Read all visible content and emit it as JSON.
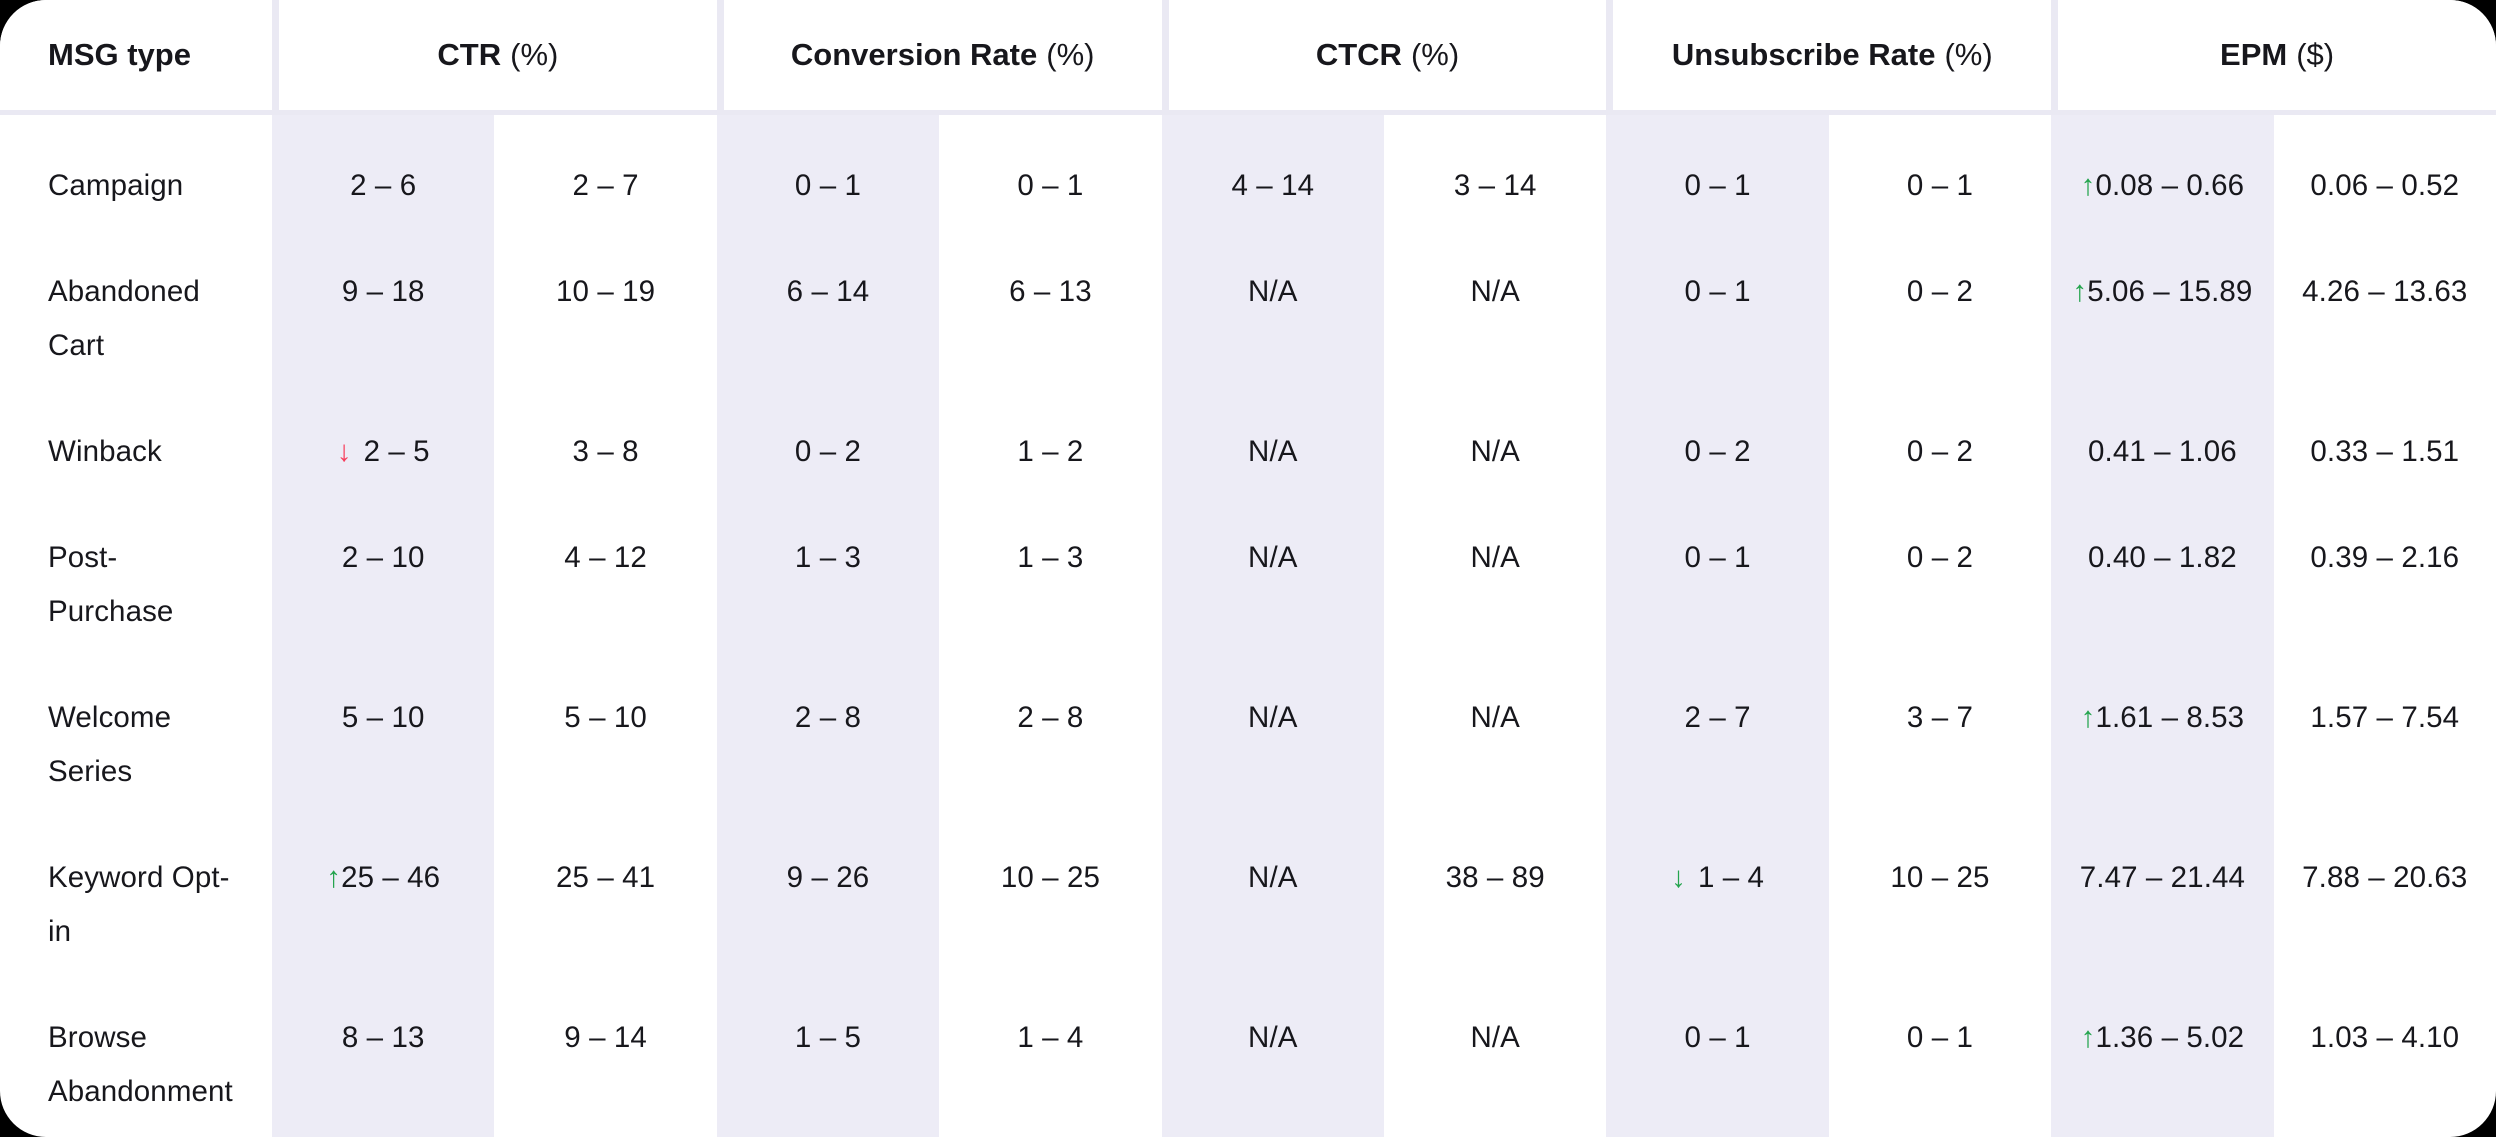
{
  "colors": {
    "page_background": "#000000",
    "card_background": "#ffffff",
    "column_band": "#edecf6",
    "header_gap": "#eae9f3",
    "text": "#17171c",
    "arrow_green": "#24a44e",
    "arrow_red": "#f63e5c"
  },
  "chart_data": {
    "type": "table",
    "row_header_label": "MSG type",
    "column_groups": [
      {
        "label": "CTR",
        "unit": "(%)"
      },
      {
        "label": "Conversion Rate",
        "unit": "(%)"
      },
      {
        "label": "CTCR",
        "unit": "(%)"
      },
      {
        "label": "Unsubscribe Rate",
        "unit": "(%)"
      },
      {
        "label": "EPM",
        "unit": "($)"
      }
    ],
    "subcolumns_per_group": 2,
    "rows": [
      {
        "label": "Campaign",
        "cells": [
          "2 – 6",
          "2 – 7",
          "0 – 1",
          "0 – 1",
          "4 – 14",
          "3 – 14",
          "0 – 1",
          "0 – 1",
          {
            "arrow": "up",
            "color": "green",
            "text": "0.08 – 0.66",
            "space_after_arrow": false
          },
          "0.06 – 0.52"
        ]
      },
      {
        "label": "Abandoned Cart",
        "cells": [
          "9 – 18",
          "10 – 19",
          "6 – 14",
          "6 – 13",
          "N/A",
          "N/A",
          "0 – 1",
          "0 – 2",
          {
            "arrow": "up",
            "color": "green",
            "text": "5.06 – 15.89",
            "space_after_arrow": false
          },
          "4.26 – 13.63"
        ]
      },
      {
        "label": "Winback",
        "cells": [
          {
            "arrow": "down",
            "color": "red",
            "text": "2 – 5",
            "space_after_arrow": true
          },
          "3 – 8",
          "0 – 2",
          "1 – 2",
          "N/A",
          "N/A",
          "0 – 2",
          "0 – 2",
          "0.41 – 1.06",
          "0.33 – 1.51"
        ]
      },
      {
        "label": "Post-Purchase",
        "cells": [
          "2 – 10",
          "4 – 12",
          "1 – 3",
          "1 – 3",
          "N/A",
          "N/A",
          "0 – 1",
          "0 – 2",
          "0.40 – 1.82",
          "0.39 – 2.16"
        ]
      },
      {
        "label": "Welcome Series",
        "cells": [
          "5 – 10",
          "5 – 10",
          "2 – 8",
          "2 – 8",
          "N/A",
          "N/A",
          "2 – 7",
          "3 – 7",
          {
            "arrow": "up",
            "color": "green",
            "text": "1.61 – 8.53",
            "space_after_arrow": false
          },
          "1.57 – 7.54"
        ]
      },
      {
        "label": "Keyword Opt-in",
        "cells": [
          {
            "arrow": "up",
            "color": "green",
            "text": "25 – 46",
            "space_after_arrow": false
          },
          "25 – 41",
          "9 – 26",
          "10 – 25",
          "N/A",
          "38 – 89",
          {
            "arrow": "down",
            "color": "green",
            "text": "1 – 4",
            "space_after_arrow": true
          },
          "10 – 25",
          "7.47 – 21.44",
          "7.88 – 20.63"
        ]
      },
      {
        "label": "Browse Abandonment",
        "cells": [
          "8 – 13",
          "9 – 14",
          "1 – 5",
          "1 – 4",
          "N/A",
          "N/A",
          "0 – 1",
          "0 – 1",
          {
            "arrow": "up",
            "color": "green",
            "text": "1.36 – 5.02",
            "space_after_arrow": false
          },
          "1.03 – 4.10"
        ]
      }
    ]
  }
}
